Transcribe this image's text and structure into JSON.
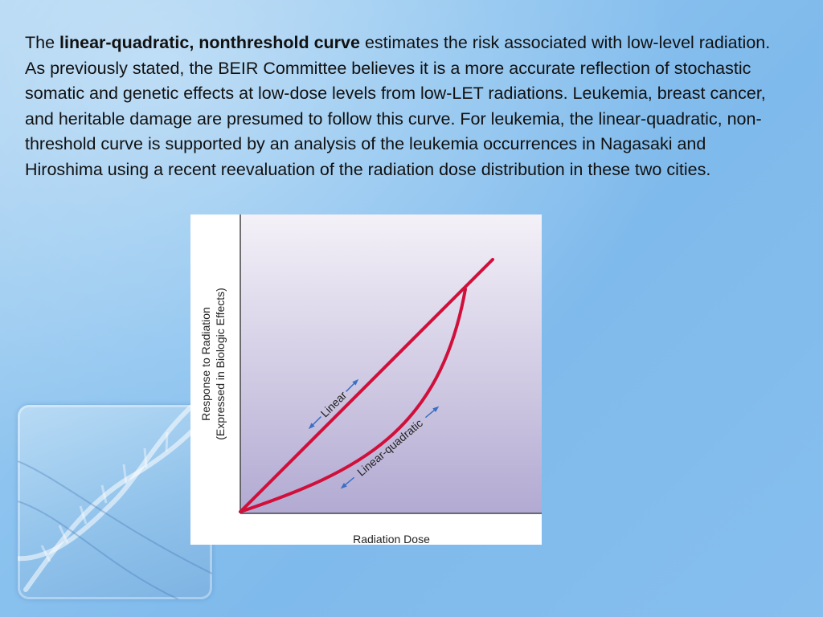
{
  "paragraph": {
    "prefix": "The ",
    "bold_term": "linear-quadratic, nonthreshold curve",
    "body": " estimates the risk associated with low-level radiation. As previously stated, the BEIR Committee believes it is a more accurate reflection of stochastic somatic and genetic effects at low-dose levels from low-LET radiations. Leukemia, breast cancer, and heritable damage are presumed to follow this curve. For leukemia, the linear-quadratic, non-threshold curve is supported by an analysis of the leukemia occurrences in Nagasaki and Hiroshima using a recent reevaluation of the radiation dose distribution in these two cities."
  },
  "figure": {
    "y_axis_line1": "Response to Radiation",
    "y_axis_line2": "(Expressed in Biologic Effects)",
    "x_axis_label": "Radiation Dose",
    "linear_label": "Linear",
    "lq_label": "Linear-quadratic",
    "curve_color": "#d0103a",
    "arrow_color": "#3a6fc4"
  },
  "theme": {
    "background": "#8cc3ef",
    "text_color": "#111111"
  }
}
